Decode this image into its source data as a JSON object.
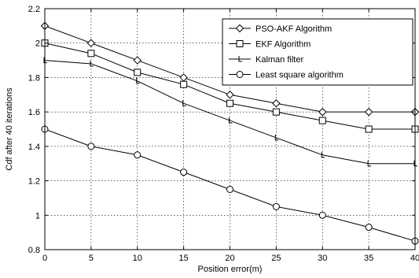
{
  "chart_data": {
    "type": "line",
    "xlabel": "Position error(m)",
    "ylabel": "Cdf after 40 iterations",
    "xlim": [
      0,
      40
    ],
    "ylim": [
      0.8,
      2.2
    ],
    "xticks": [
      0,
      5,
      10,
      15,
      20,
      25,
      30,
      35,
      40
    ],
    "yticks": [
      0.8,
      1,
      1.2,
      1.4,
      1.6,
      1.8,
      2,
      2.2
    ],
    "xtick_labels": [
      "0",
      "5",
      "10",
      "15",
      "20",
      "25",
      "30",
      "35",
      "40"
    ],
    "ytick_labels": [
      "0.8",
      "1",
      "1.2",
      "1.4",
      "1.6",
      "1.8",
      "2",
      "2.2"
    ],
    "grid": true,
    "legend_position": "top-right",
    "x": [
      0,
      5,
      10,
      15,
      20,
      25,
      30,
      35,
      40
    ],
    "series": [
      {
        "name": "PSO-AKF Algorithm",
        "marker": "diamond",
        "values": [
          2.1,
          2.0,
          1.9,
          1.8,
          1.7,
          1.65,
          1.6,
          1.6,
          1.6
        ]
      },
      {
        "name": "EKF Algorithm",
        "marker": "square",
        "values": [
          2.0,
          1.94,
          1.83,
          1.76,
          1.65,
          1.6,
          1.55,
          1.5,
          1.5
        ]
      },
      {
        "name": "Kalman filter",
        "marker": "tick",
        "values": [
          1.9,
          1.88,
          1.78,
          1.65,
          1.55,
          1.45,
          1.35,
          1.3,
          1.3
        ]
      },
      {
        "name": "Least square algorithm",
        "marker": "circle",
        "values": [
          1.5,
          1.4,
          1.35,
          1.25,
          1.15,
          1.05,
          1.0,
          0.93,
          0.85
        ]
      }
    ]
  }
}
